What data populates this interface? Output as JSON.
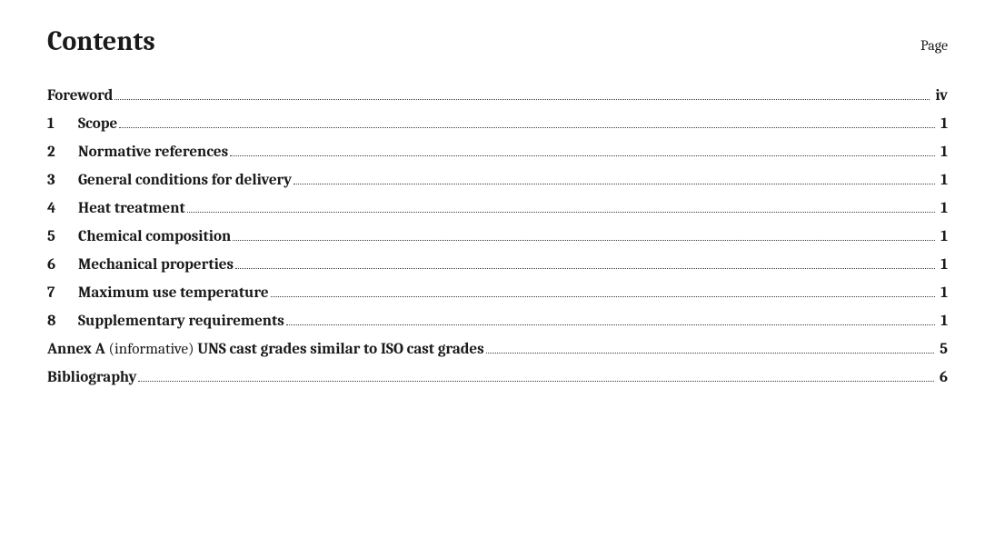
{
  "header": {
    "title": "Contents",
    "page_label": "Page"
  },
  "toc": [
    {
      "num": "",
      "indent": false,
      "parts": [
        {
          "text": "Foreword",
          "bold": true
        }
      ],
      "page": "iv",
      "page_bold": true
    },
    {
      "num": "1",
      "indent": true,
      "parts": [
        {
          "text": "Scope",
          "bold": true
        }
      ],
      "page": "1",
      "page_bold": true
    },
    {
      "num": "2",
      "indent": true,
      "parts": [
        {
          "text": "Normative references",
          "bold": true
        }
      ],
      "page": "1",
      "page_bold": true
    },
    {
      "num": "3",
      "indent": true,
      "parts": [
        {
          "text": "General conditions for delivery",
          "bold": true
        }
      ],
      "page": "1",
      "page_bold": true
    },
    {
      "num": "4",
      "indent": true,
      "parts": [
        {
          "text": "Heat treatment",
          "bold": true
        }
      ],
      "page": "1",
      "page_bold": true
    },
    {
      "num": "5",
      "indent": true,
      "parts": [
        {
          "text": "Chemical composition",
          "bold": true
        }
      ],
      "page": "1",
      "page_bold": true
    },
    {
      "num": "6",
      "indent": true,
      "parts": [
        {
          "text": "Mechanical properties",
          "bold": true
        }
      ],
      "page": "1",
      "page_bold": true
    },
    {
      "num": "7",
      "indent": true,
      "parts": [
        {
          "text": "Maximum use temperature",
          "bold": true
        }
      ],
      "page": "1",
      "page_bold": true
    },
    {
      "num": "8",
      "indent": true,
      "parts": [
        {
          "text": "Supplementary requirements",
          "bold": true
        }
      ],
      "page": "1",
      "page_bold": true
    },
    {
      "num": "",
      "indent": false,
      "parts": [
        {
          "text": "Annex A ",
          "bold": true
        },
        {
          "text": "(informative) ",
          "bold": false
        },
        {
          "text": "UNS cast grades similar to ISO cast grades",
          "bold": true
        }
      ],
      "page": "5",
      "page_bold": true
    },
    {
      "num": "",
      "indent": false,
      "parts": [
        {
          "text": "Bibliography",
          "bold": true
        }
      ],
      "page": "6",
      "page_bold": true
    }
  ]
}
